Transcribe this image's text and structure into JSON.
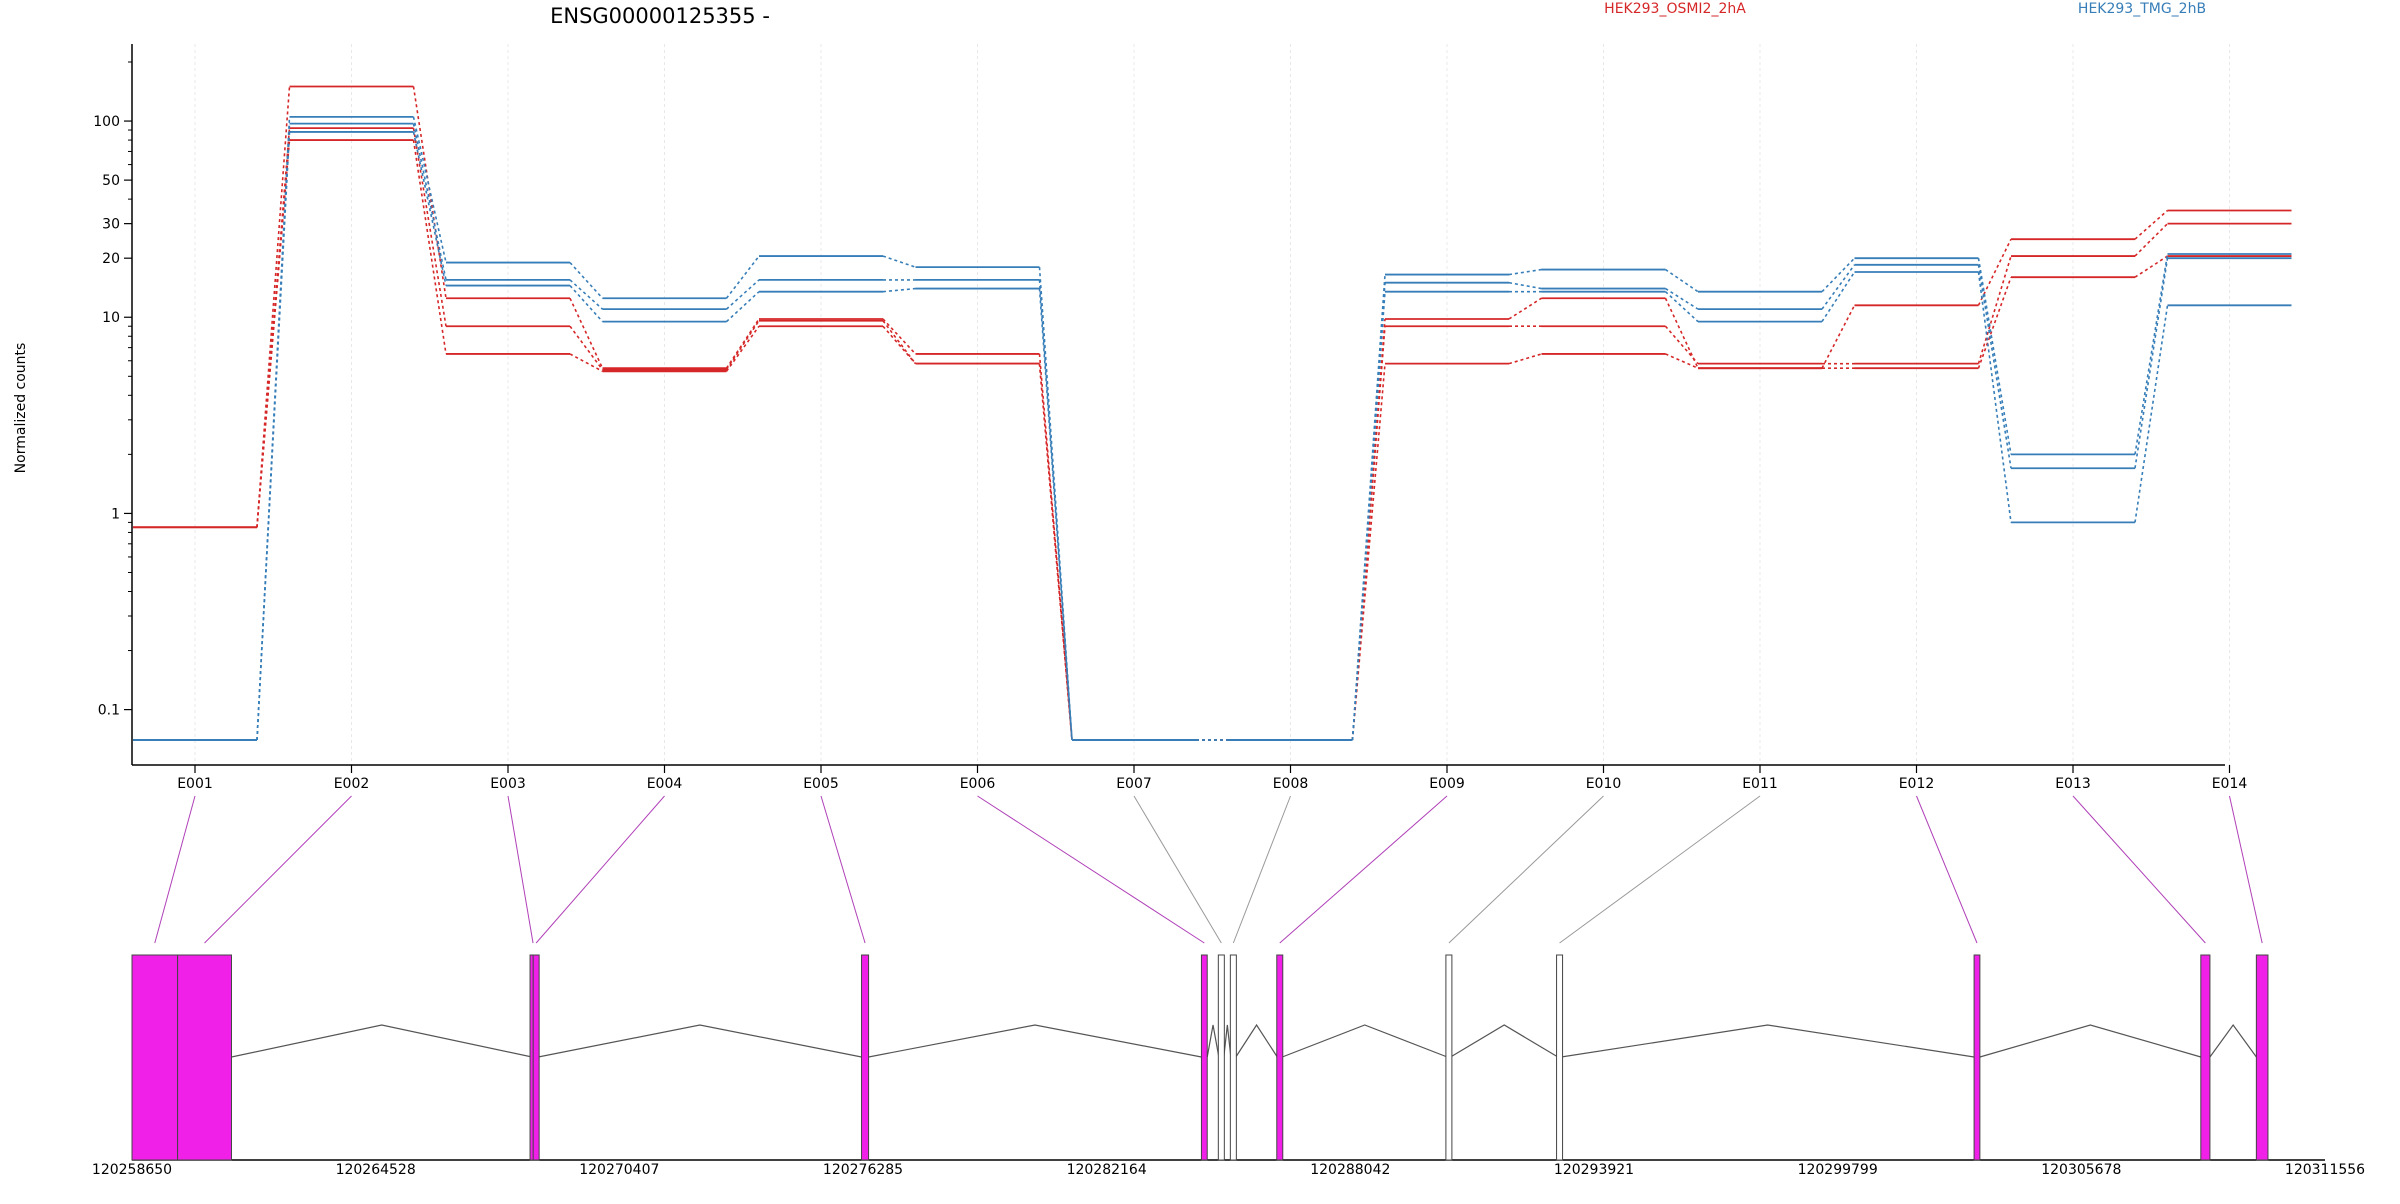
{
  "chart_data": {
    "type": "line",
    "title": "ENSG00000125355 -",
    "ylabel": "Normalized counts",
    "yscale": "log",
    "ylim": [
      0.07,
      200
    ],
    "yticks": [
      {
        "value": 0.1,
        "label": "0.1"
      },
      {
        "value": 1,
        "label": "1"
      },
      {
        "value": 10,
        "label": "10"
      },
      {
        "value": 20,
        "label": "20"
      },
      {
        "value": 30,
        "label": "30"
      },
      {
        "value": 50,
        "label": "50"
      },
      {
        "value": 100,
        "label": "100"
      }
    ],
    "grid": "vertical, light",
    "legend": [
      {
        "label": "HEK293_OSMI2_2hA",
        "color": "#d62728"
      },
      {
        "label": "HEK293_TMG_2hB",
        "color": "#377eb8"
      }
    ],
    "categories": [
      "E001",
      "E002",
      "E003",
      "E004",
      "E005",
      "E006",
      "E007",
      "E008",
      "E009",
      "E010",
      "E011",
      "E012",
      "E013",
      "E014"
    ],
    "series": [
      {
        "group": "HEK293_OSMI2_2hA",
        "color": "#d62728",
        "values": [
          0.85,
          150,
          12.5,
          5.5,
          9.8,
          6.5,
          0.07,
          0.07,
          9.8,
          12.5,
          5.5,
          11.5,
          25,
          35
        ]
      },
      {
        "group": "HEK293_OSMI2_2hA",
        "color": "#d62728",
        "values": [
          0.85,
          92,
          9.0,
          5.4,
          9.6,
          5.8,
          0.07,
          0.07,
          9.0,
          9.0,
          5.8,
          5.8,
          20.5,
          30
        ]
      },
      {
        "group": "HEK293_OSMI2_2hA",
        "color": "#d62728",
        "values": [
          0.85,
          80,
          6.5,
          5.3,
          9.0,
          5.8,
          0.07,
          0.07,
          5.8,
          6.5,
          5.5,
          5.5,
          16,
          20.5
        ]
      },
      {
        "group": "HEK293_TMG_2hB",
        "color": "#377eb8",
        "values": [
          0.07,
          105,
          19,
          12.5,
          20.5,
          18,
          0.07,
          0.07,
          16.5,
          17.5,
          13.5,
          20,
          2.0,
          21
        ]
      },
      {
        "group": "HEK293_TMG_2hB",
        "color": "#377eb8",
        "values": [
          0.07,
          97,
          15.5,
          11,
          15.5,
          15.5,
          0.07,
          0.07,
          15,
          14,
          11,
          18.5,
          1.7,
          20
        ]
      },
      {
        "group": "HEK293_TMG_2hB",
        "color": "#377eb8",
        "values": [
          0.07,
          88,
          14.5,
          9.5,
          13.5,
          14,
          0.07,
          0.07,
          13.5,
          13.5,
          9.5,
          17,
          0.9,
          11.5
        ]
      }
    ]
  },
  "gene_model": {
    "coordinate_labels": [
      "120258650",
      "120264528",
      "120270407",
      "120276285",
      "120282164",
      "120288042",
      "120293921",
      "120299799",
      "120305678",
      "120311556"
    ],
    "range": [
      120258650,
      120311556
    ],
    "exon_fill": "#f020e8",
    "exons": [
      {
        "id": "E001",
        "start": 120258650,
        "end": 120259750,
        "highlighted": true
      },
      {
        "id": "E002",
        "start": 120259750,
        "end": 120261050,
        "highlighted": true
      },
      {
        "id": "E003",
        "start": 120268300,
        "end": 120268350,
        "highlighted": true
      },
      {
        "id": "E004",
        "start": 120268350,
        "end": 120268450,
        "highlighted": true
      },
      {
        "id": "E005",
        "start": 120276250,
        "end": 120276420,
        "highlighted": true
      },
      {
        "id": "E006",
        "start": 120284450,
        "end": 120284590,
        "highlighted": true
      },
      {
        "id": "E007",
        "start": 120284870,
        "end": 120284990,
        "highlighted": false
      },
      {
        "id": "E008",
        "start": 120285160,
        "end": 120285280,
        "highlighted": false
      },
      {
        "id": "E009",
        "start": 120286280,
        "end": 120286400,
        "highlighted": true
      },
      {
        "id": "E010",
        "start": 120290380,
        "end": 120290460,
        "highlighted": false
      },
      {
        "id": "E011",
        "start": 120293050,
        "end": 120293130,
        "highlighted": false
      },
      {
        "id": "E012",
        "start": 120303090,
        "end": 120303230,
        "highlighted": true
      },
      {
        "id": "E013",
        "start": 120308560,
        "end": 120308780,
        "highlighted": true
      },
      {
        "id": "E014",
        "start": 120309900,
        "end": 120310180,
        "highlighted": true
      }
    ]
  }
}
